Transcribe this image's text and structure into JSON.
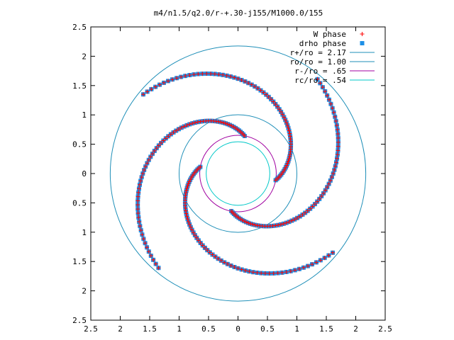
{
  "chart_data": {
    "type": "scatter",
    "title": "m4/n1.5/q2.0/r-+.30-j155/M1000.0/155",
    "xlabel": "",
    "ylabel": "",
    "xlim": [
      -2.5,
      2.5
    ],
    "ylim": [
      -2.5,
      2.5
    ],
    "grid": false,
    "legend_position": "top-right",
    "x_ticks": [
      {
        "value": -2.5,
        "label": "2.5"
      },
      {
        "value": -2.0,
        "label": "2"
      },
      {
        "value": -1.5,
        "label": "1.5"
      },
      {
        "value": -1.0,
        "label": "1"
      },
      {
        "value": -0.5,
        "label": "0.5"
      },
      {
        "value": 0.0,
        "label": "0"
      },
      {
        "value": 0.5,
        "label": "0.5"
      },
      {
        "value": 1.0,
        "label": "1"
      },
      {
        "value": 1.5,
        "label": "1.5"
      },
      {
        "value": 2.0,
        "label": "2"
      },
      {
        "value": 2.5,
        "label": "2.5"
      }
    ],
    "y_ticks": [
      {
        "value": 2.5,
        "label": "2.5"
      },
      {
        "value": 2.0,
        "label": "2"
      },
      {
        "value": 1.5,
        "label": "1.5"
      },
      {
        "value": 1.0,
        "label": "1"
      },
      {
        "value": 0.5,
        "label": "0.5"
      },
      {
        "value": 0.0,
        "label": "0"
      },
      {
        "value": -0.5,
        "label": "0.5"
      },
      {
        "value": -1.0,
        "label": "1"
      },
      {
        "value": -1.5,
        "label": "1.5"
      },
      {
        "value": -2.0,
        "label": "2"
      },
      {
        "value": -2.5,
        "label": "2.5"
      }
    ],
    "circles": [
      {
        "name": "r+/ro = 2.17",
        "radius": 2.17,
        "color": "#1f8fb8"
      },
      {
        "name": "ro/ro = 1.00",
        "radius": 1.0,
        "color": "#1f8fb8"
      },
      {
        "name": "r-/ro = .65",
        "radius": 0.65,
        "color": "#a000a0"
      },
      {
        "name": "rc/ro = .54",
        "radius": 0.54,
        "color": "#00c8c8"
      }
    ],
    "series": [
      {
        "name": "W phase",
        "marker": "plus",
        "color": "#ff0000",
        "arms": [
          {
            "r_start": 0.65,
            "r_end": 2.1,
            "theta_start_deg": 80,
            "theta_span_deg": 150,
            "n": 70
          },
          {
            "r_start": 0.65,
            "r_end": 2.1,
            "theta_start_deg": 170,
            "theta_span_deg": 150,
            "n": 70
          },
          {
            "r_start": 0.65,
            "r_end": 2.1,
            "theta_start_deg": 260,
            "theta_span_deg": 150,
            "n": 70
          },
          {
            "r_start": 0.65,
            "r_end": 2.1,
            "theta_start_deg": 350,
            "theta_span_deg": 150,
            "n": 70
          }
        ]
      },
      {
        "name": "drho phase",
        "marker": "square",
        "color": "#1e90e6",
        "arms": [
          {
            "r_start": 0.65,
            "r_end": 2.1,
            "theta_start_deg": 80,
            "theta_span_deg": 150,
            "n": 70
          },
          {
            "r_start": 0.65,
            "r_end": 2.1,
            "theta_start_deg": 170,
            "theta_span_deg": 150,
            "n": 70
          },
          {
            "r_start": 0.65,
            "r_end": 2.1,
            "theta_start_deg": 260,
            "theta_span_deg": 150,
            "n": 70
          },
          {
            "r_start": 0.65,
            "r_end": 2.1,
            "theta_start_deg": 350,
            "theta_span_deg": 150,
            "n": 70
          }
        ]
      }
    ]
  }
}
